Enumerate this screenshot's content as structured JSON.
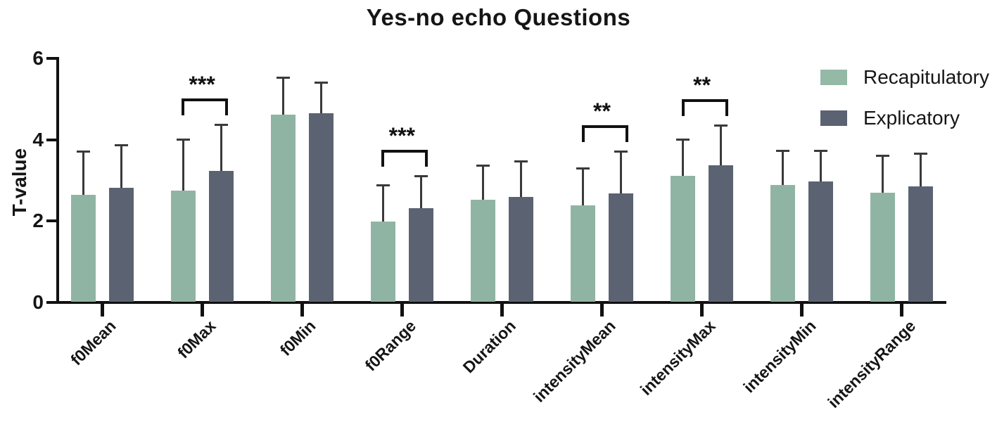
{
  "title": "Yes-no echo Questions",
  "legend": {
    "items": [
      {
        "label": "Recapitulatory",
        "color": "#94b9a7"
      },
      {
        "label": "Explicatory",
        "color": "#5b6372"
      }
    ]
  },
  "colors": {
    "recapitulatory_bar": "#90b4a3",
    "explicatory_bar": "#5b6372",
    "axis": "#111111",
    "error_bar": "#3a3a3a"
  },
  "chart_data": {
    "type": "bar",
    "title": "Yes-no echo Questions",
    "xlabel": "",
    "ylabel": "T-value",
    "ylim": [
      0,
      6
    ],
    "yticks": [
      0,
      2,
      4,
      6
    ],
    "grid": false,
    "legend_position": "top-right",
    "error_bars": "upper, one-sided with caps",
    "categories": [
      "f0Mean",
      "f0Max",
      "f0Min",
      "f0Range",
      "Duration",
      "intensityMean",
      "intensityMax",
      "intensityMin",
      "intensityRange"
    ],
    "series": [
      {
        "name": "Recapitulatory",
        "values": [
          2.65,
          2.75,
          4.61,
          1.98,
          2.52,
          2.39,
          3.12,
          2.88,
          2.7
        ],
        "errors": [
          1.07,
          1.26,
          0.93,
          0.9,
          0.85,
          0.91,
          0.89,
          0.85,
          0.92
        ]
      },
      {
        "name": "Explicatory",
        "values": [
          2.82,
          3.24,
          4.65,
          2.32,
          2.6,
          2.68,
          3.37,
          2.98,
          2.86
        ],
        "errors": [
          1.05,
          1.14,
          0.77,
          0.79,
          0.87,
          1.04,
          0.98,
          0.76,
          0.81
        ]
      }
    ],
    "significance": [
      {
        "category": "f0Max",
        "label": "***"
      },
      {
        "category": "f0Range",
        "label": "***"
      },
      {
        "category": "intensityMean",
        "label": "**"
      },
      {
        "category": "intensityMax",
        "label": "**"
      }
    ]
  }
}
